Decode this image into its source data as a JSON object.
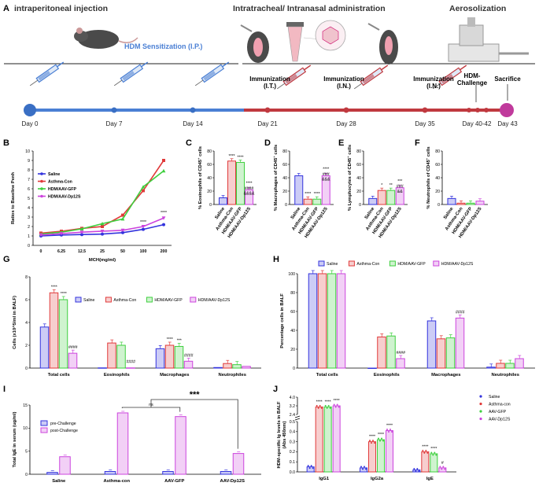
{
  "panel_letters": [
    "A",
    "B",
    "C",
    "D",
    "E",
    "F",
    "G",
    "H",
    "I",
    "J"
  ],
  "colors": {
    "saline": "#3333dd",
    "asthma": "#e03a3a",
    "gfp": "#3ecf3e",
    "dp12s": "#cc44dd",
    "timeline_blue": "#4a7fd4",
    "timeline_red": "#c0393f",
    "sacrifice": "#c03a9c"
  },
  "timeline": {
    "phase_ip": "intraperitoneal injection",
    "phase_it": "Intratracheal/ Intranasal administration",
    "phase_aero": "Aerosolization",
    "sensitization": "HDM Sensitization (I.P.)",
    "imm_it": "Immunization\n(I.T.)",
    "imm_in1": "Immunization\n(I.N.)",
    "imm_in2": "Immunization\n(I.N.)",
    "challenge": "HDM-\nChallenge",
    "sacrifice": "Sacrifice",
    "days": [
      "Day 0",
      "Day 7",
      "Day 14",
      "Day 21",
      "Day 28",
      "Day 35",
      "Day 40-42",
      "Day 43"
    ]
  },
  "panel_b": {
    "chart_data": {
      "type": "line",
      "xlabel": "MCH(mg/ml)",
      "ylabel": "Ratios to Baseline Penh",
      "categories": [
        "0",
        "6.25",
        "12.5",
        "25",
        "50",
        "100",
        "200"
      ],
      "ylim": [
        0,
        10
      ],
      "yticks": [
        "0",
        "1",
        "2",
        "3",
        "4",
        "5",
        "6",
        "7",
        "8",
        "9",
        "10"
      ],
      "series": [
        {
          "name": "Saline",
          "values": [
            1.0,
            1.1,
            1.15,
            1.2,
            1.35,
            1.7,
            2.2
          ]
        },
        {
          "name": "Asthma-Con",
          "values": [
            1.3,
            1.5,
            1.8,
            2.0,
            3.2,
            5.8,
            9.0
          ]
        },
        {
          "name": "HDM/AAV-GFP",
          "values": [
            1.2,
            1.4,
            1.75,
            2.3,
            2.8,
            6.2,
            7.9
          ]
        },
        {
          "name": "HDM/AAV-Dp12S",
          "values": [
            1.1,
            1.25,
            1.4,
            1.5,
            1.6,
            2.0,
            2.9
          ]
        }
      ],
      "annotations": [
        "****",
        "****",
        "****"
      ]
    }
  },
  "panel_c": {
    "chart_data": {
      "type": "bar",
      "ylabel": "% Eosinophils of CD45+ cells",
      "ylim": [
        0,
        80
      ],
      "yticks": [
        "0",
        "20",
        "40",
        "60",
        "80"
      ],
      "categories": [
        "Saline",
        "Asthma-Con",
        "HDM/AAV-GFP",
        "HDM/AAV-Dp12S"
      ],
      "values": [
        10,
        65,
        63,
        22
      ],
      "annotations": [
        "",
        "****",
        "****",
        "****\n####\n&&&&"
      ]
    }
  },
  "panel_d": {
    "chart_data": {
      "type": "bar",
      "ylabel": "% Macrophages of CD45+ cells",
      "ylim": [
        0,
        80
      ],
      "yticks": [
        "0",
        "20",
        "40",
        "60",
        "80"
      ],
      "categories": [
        "Saline",
        "Asthma-Con",
        "HDM/AAV-GFP",
        "HDM/AAV-Dp12S"
      ],
      "values": [
        43,
        8,
        8,
        43
      ],
      "annotations": [
        "",
        "****",
        "****",
        "****\n###\n&&&"
      ]
    }
  },
  "panel_e": {
    "chart_data": {
      "type": "bar",
      "ylabel": "% Lymphocytes of CD45+ cells",
      "ylim": [
        0,
        80
      ],
      "yticks": [
        "0",
        "20",
        "40",
        "60",
        "80"
      ],
      "categories": [
        "Saline",
        "Asthma-Con",
        "HDM/AAV-GFP",
        "HDM/AAV-Dp12S"
      ],
      "values": [
        9,
        21,
        21,
        25
      ],
      "annotations": [
        "",
        "*",
        "**",
        "***\n###\n&&"
      ]
    }
  },
  "panel_f": {
    "chart_data": {
      "type": "bar",
      "ylabel": "% Neutrophils of CD45+ cells",
      "ylim": [
        0,
        80
      ],
      "yticks": [
        "0",
        "20",
        "40",
        "60",
        "80"
      ],
      "categories": [
        "Saline",
        "Asthma-Con",
        "HDM/AAV-GFP",
        "HDM/AAV-Dp12S"
      ],
      "values": [
        9,
        2,
        2,
        5
      ],
      "annotations": [
        "",
        "",
        "",
        ""
      ]
    }
  },
  "panel_g": {
    "chart_data": {
      "type": "bar",
      "ylabel": "Cells (x10^5/ml in BALF)",
      "ylim": [
        0,
        8
      ],
      "yticks": [
        "0",
        "2",
        "4",
        "6",
        "8"
      ],
      "categories": [
        "Total cells",
        "Eosinophils",
        "Macrophages",
        "Neutrophiles"
      ],
      "series": [
        {
          "name": "Saline",
          "values": [
            3.6,
            0.02,
            1.7,
            0.05
          ]
        },
        {
          "name": "Asthma-Con",
          "values": [
            6.6,
            2.2,
            2.0,
            0.4
          ]
        },
        {
          "name": "HDM/AAV-GFP",
          "values": [
            6.0,
            2.0,
            1.9,
            0.3
          ]
        },
        {
          "name": "HDM/AAV-Dp12S",
          "values": [
            1.3,
            0.02,
            0.6,
            0.15
          ]
        }
      ],
      "annotations": [
        [
          "",
          "****",
          "****",
          "####"
        ],
        [
          "",
          "",
          "",
          "####"
        ],
        [
          "",
          "****",
          "***",
          "####"
        ],
        [
          "",
          "",
          "",
          ""
        ]
      ]
    }
  },
  "panel_h": {
    "chart_data": {
      "type": "bar",
      "ylabel": "Percentage cells in BALF",
      "ylim": [
        0,
        100
      ],
      "yticks": [
        "0",
        "20",
        "40",
        "60",
        "80",
        "100"
      ],
      "categories": [
        "Total cells",
        "Eosinophils",
        "Macrophages",
        "Neutrophiles"
      ],
      "series": [
        {
          "name": "Saline",
          "values": [
            100,
            0,
            50,
            1
          ]
        },
        {
          "name": "Asthma-Con",
          "values": [
            100,
            33,
            31,
            5
          ]
        },
        {
          "name": "HDM/AAV-GFP",
          "values": [
            100,
            34,
            32,
            5
          ]
        },
        {
          "name": "HDM/AAV-Dp12S",
          "values": [
            100,
            10,
            53,
            10
          ]
        }
      ],
      "annotations": [
        [
          "",
          "",
          "",
          ""
        ],
        [
          "",
          "",
          "",
          "####"
        ],
        [
          "",
          "",
          "",
          "####"
        ],
        [
          "",
          "",
          "",
          ""
        ]
      ]
    }
  },
  "panel_i": {
    "chart_data": {
      "type": "bar",
      "ylabel": "Total IgE in serum (ug/ml)",
      "ylim": [
        0,
        15
      ],
      "yticks": [
        "0",
        "5",
        "10",
        "15"
      ],
      "categories": [
        "Saline",
        "Asthma-con",
        "AAV-GFP",
        "AAV-Dp12S"
      ],
      "series": [
        {
          "name": "pre-Challenge",
          "values": [
            0.4,
            0.6,
            0.6,
            0.6
          ]
        },
        {
          "name": "post-Challenge",
          "values": [
            3.8,
            13.3,
            12.5,
            4.5
          ]
        }
      ],
      "annotations": [
        "ns",
        "***"
      ]
    }
  },
  "panel_j": {
    "chart_data": {
      "type": "bar",
      "ylabel": "HDM-specific Ig levels in BALF (Abs 450nm)",
      "yticks": [
        "0.0",
        "0.1",
        "0.2",
        "0.3",
        "0.4",
        "0.5",
        "2.4",
        "3.2",
        "4.0"
      ],
      "categories": [
        "IgG1",
        "IgG2a",
        "IgE"
      ],
      "series": [
        {
          "name": "Saline",
          "values": [
            0.05,
            0.04,
            0.02
          ]
        },
        {
          "name": "Asthma-con",
          "values": [
            3.1,
            0.3,
            0.2
          ]
        },
        {
          "name": "AAV-GFP",
          "values": [
            3.1,
            0.32,
            0.18
          ]
        },
        {
          "name": "AAV-Dp12S",
          "values": [
            3.2,
            0.41,
            0.04
          ]
        }
      ],
      "annotations": [
        [
          "",
          "****",
          "****",
          "****"
        ],
        [
          "",
          "****",
          "****",
          "****"
        ],
        [
          "",
          "****",
          "****",
          "#"
        ]
      ]
    }
  }
}
